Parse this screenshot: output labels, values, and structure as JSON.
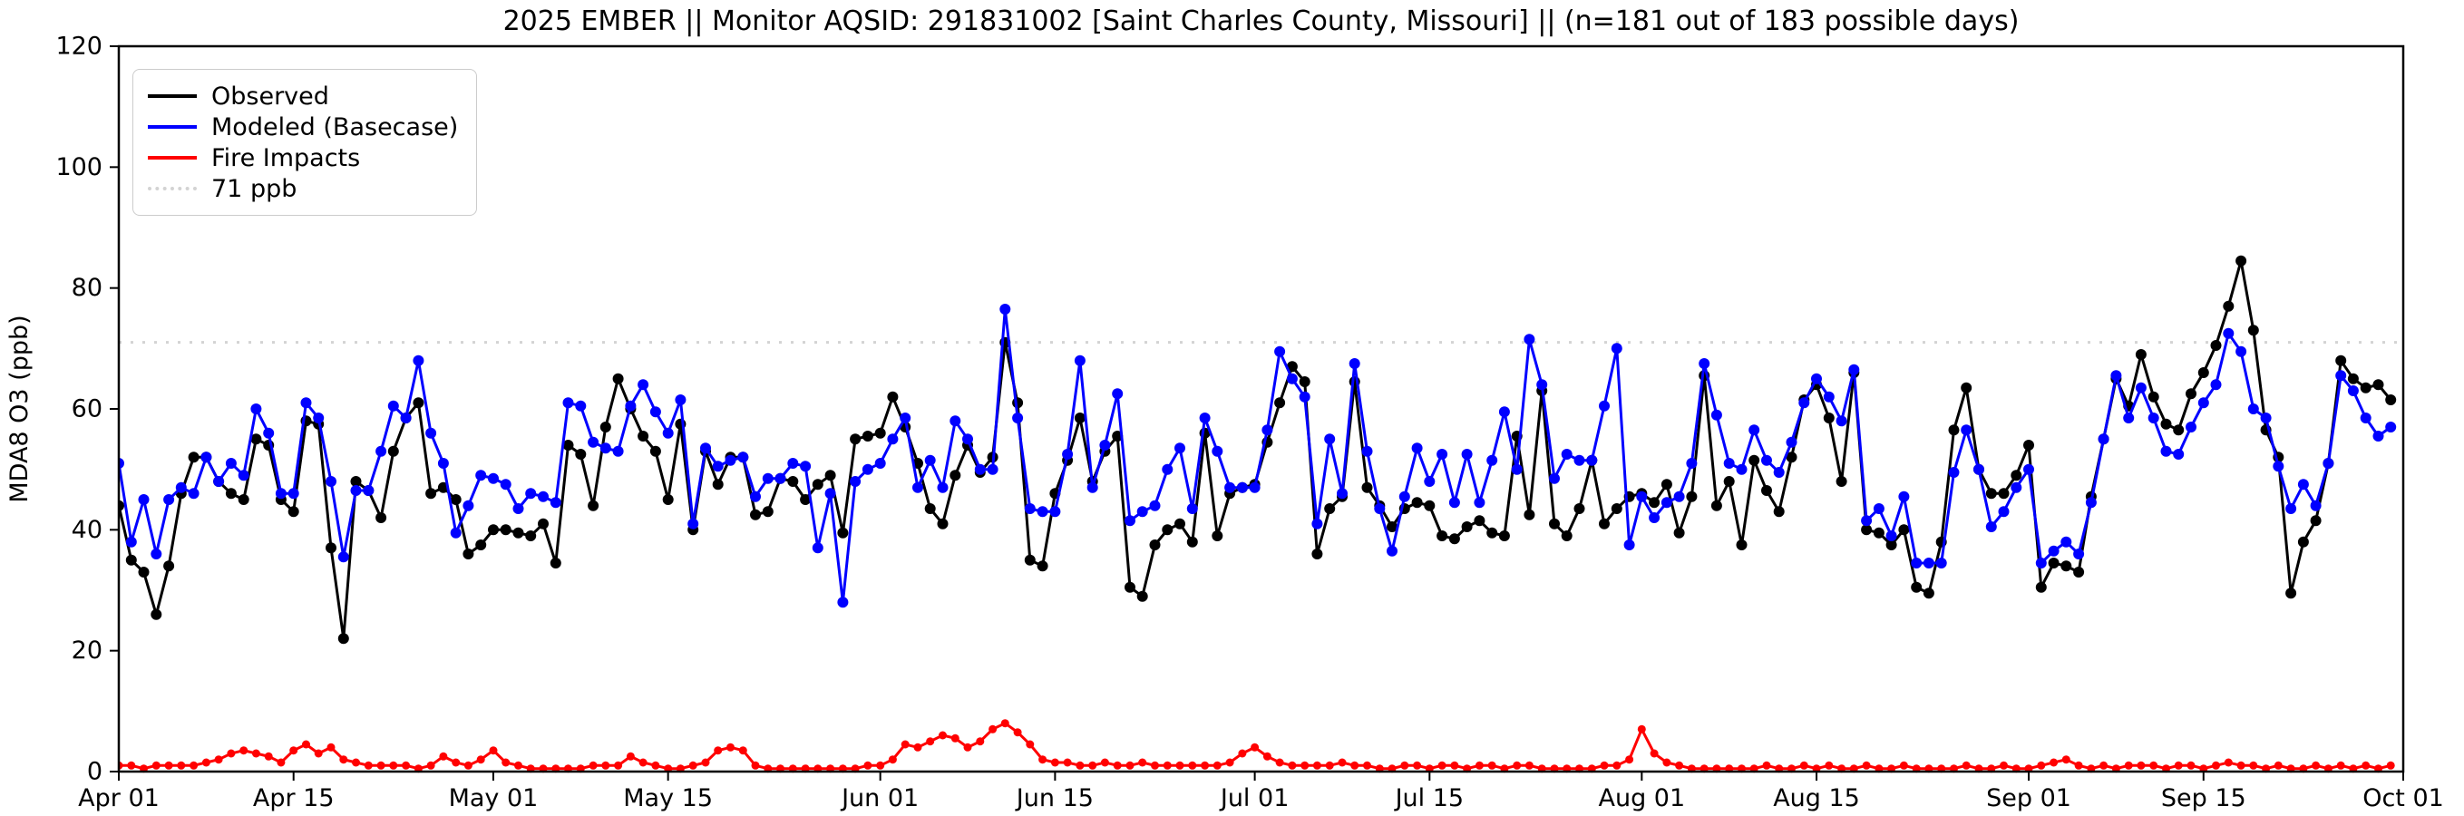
{
  "figure": {
    "title": "2025 EMBER || Monitor AQSID: 291831002 [Saint Charles County, Missouri] || (n=181 out of 183 possible days)"
  },
  "legend": {
    "position": "upper left",
    "items": [
      {
        "label": "Observed",
        "color": "#000000",
        "style": "solid"
      },
      {
        "label": "Modeled (Basecase)",
        "color": "#0000ff",
        "style": "solid"
      },
      {
        "label": "Fire Impacts",
        "color": "#ff0000",
        "style": "solid"
      },
      {
        "label": "71 ppb",
        "color": "#d3d3d3",
        "style": "dotted"
      }
    ]
  },
  "chart_data": {
    "type": "line",
    "title": "2025 EMBER || Monitor AQSID: 291831002 [Saint Charles County, Missouri] || (n=181 out of 183 possible days)",
    "xlabel": "",
    "ylabel": "MDA8 O3 (ppb)",
    "ylim": [
      0,
      120
    ],
    "yticks": [
      0,
      20,
      40,
      60,
      80,
      100,
      120
    ],
    "x_days": 183,
    "x_start": "Apr 01",
    "x_end": "Oct 01",
    "xtick_labels": [
      "Apr 01",
      "Apr 15",
      "May 01",
      "May 15",
      "Jun 01",
      "Jun 15",
      "Jul 01",
      "Jul 15",
      "Aug 01",
      "Aug 15",
      "Sep 01",
      "Sep 15",
      "Oct 01"
    ],
    "xtick_day_index": [
      0,
      14,
      30,
      44,
      61,
      75,
      91,
      105,
      122,
      136,
      153,
      167,
      183
    ],
    "grid": false,
    "legend_position": "upper left",
    "reference_line": {
      "value": 71,
      "label": "71 ppb",
      "color": "#d3d3d3",
      "style": "dotted"
    },
    "values_note": "daily MDA8 ozone (ppb), Apr 01 - Sep 30, values estimated from plot",
    "series": [
      {
        "name": "Observed",
        "color": "#000000",
        "values": [
          44,
          35,
          33,
          26,
          34,
          46,
          52,
          52,
          48,
          46,
          45,
          55,
          54,
          45,
          43,
          58,
          57.5,
          37,
          22,
          48,
          46.5,
          42,
          53,
          58.5,
          61,
          46,
          47,
          45,
          36,
          37.5,
          40,
          40,
          39.5,
          39,
          41,
          34.5,
          54,
          52.5,
          44,
          57,
          65,
          60,
          55.5,
          53,
          45,
          57.5,
          40,
          53,
          47.5,
          52,
          52,
          42.5,
          43,
          48.5,
          48,
          45,
          47.5,
          49,
          39.5,
          55,
          55.5,
          56,
          62,
          57,
          51,
          43.5,
          41,
          49,
          54,
          49.5,
          52,
          71,
          61,
          35,
          34,
          46,
          51.5,
          58.5,
          48,
          53,
          55.5,
          30.5,
          29,
          37.5,
          40,
          41,
          38,
          56,
          39,
          46,
          47,
          47.5,
          54.5,
          61,
          67,
          64.5,
          36,
          43.5,
          45.5,
          64.5,
          47,
          44,
          40.5,
          43.5,
          44.5,
          44,
          39,
          38.5,
          40.5,
          41.5,
          39.5,
          39,
          55.5,
          42.5,
          63,
          41,
          39,
          43.5,
          51.5,
          41,
          43.5,
          45.5,
          46,
          44.5,
          47.5,
          39.5,
          45.5,
          65.5,
          44,
          48,
          37.5,
          51.5,
          46.5,
          43,
          52,
          61.5,
          64,
          58.5,
          48,
          66,
          40,
          39.5,
          37.5,
          40,
          30.5,
          29.5,
          38,
          56.5,
          63.5,
          50,
          46,
          46,
          49,
          54,
          30.5,
          34.5,
          34,
          33,
          45.5,
          55,
          65,
          60.5,
          69,
          62,
          57.5,
          56.5,
          62.5,
          66,
          70.5,
          77,
          84.5,
          73,
          56.5,
          52,
          29.5,
          38,
          41.5,
          51,
          68,
          65,
          63.5,
          64,
          61.5
        ]
      },
      {
        "name": "Modeled (Basecase)",
        "color": "#0000ff",
        "values": [
          51,
          38,
          45,
          36,
          45,
          47,
          46,
          52,
          48,
          51,
          49,
          60,
          56,
          46,
          46,
          61,
          58.5,
          48,
          35.5,
          46.5,
          46.5,
          53,
          60.5,
          58.5,
          68,
          56,
          51,
          39.5,
          44,
          49,
          48.5,
          47.5,
          43.5,
          46,
          45.5,
          44.5,
          61,
          60.5,
          54.5,
          53.5,
          53,
          60.5,
          64,
          59.5,
          56,
          61.5,
          41,
          53.5,
          50.5,
          51.5,
          52,
          45.5,
          48.5,
          48.5,
          51,
          50.5,
          37,
          46,
          28,
          48,
          50,
          51,
          55,
          58.5,
          47,
          51.5,
          47,
          58,
          55,
          50,
          50,
          76.5,
          58.5,
          43.5,
          43,
          43,
          52.5,
          68,
          47,
          54,
          62.5,
          41.5,
          43,
          44,
          50,
          53.5,
          43.5,
          58.5,
          53,
          47,
          47,
          47,
          56.5,
          69.5,
          65,
          62,
          41,
          55,
          46,
          67.5,
          53,
          43.5,
          36.5,
          45.5,
          53.5,
          48,
          52.5,
          44.5,
          52.5,
          44.5,
          51.5,
          59.5,
          50,
          71.5,
          64,
          48.5,
          52.5,
          51.5,
          51.5,
          60.5,
          70,
          37.5,
          45.5,
          42,
          44.5,
          45.5,
          51,
          67.5,
          59,
          51,
          50,
          56.5,
          51.5,
          49.5,
          54.5,
          61,
          65,
          62,
          58,
          66.5,
          41.5,
          43.5,
          39,
          45.5,
          34.5,
          34.5,
          34.5,
          49.5,
          56.5,
          50,
          40.5,
          43,
          47,
          50,
          34.5,
          36.5,
          38,
          36,
          44.5,
          55,
          65.5,
          58.5,
          63.5,
          58.5,
          53,
          52.5,
          57,
          61,
          64,
          72.5,
          69.5,
          60,
          58.5,
          50.5,
          43.5,
          47.5,
          44,
          51,
          65.5,
          63,
          58.5,
          55.5,
          57
        ]
      },
      {
        "name": "Fire Impacts",
        "color": "#ff0000",
        "values": [
          1,
          1,
          0.5,
          1,
          1,
          1,
          1,
          1.5,
          2,
          3,
          3.5,
          3,
          2.5,
          1.5,
          3.5,
          4.5,
          3,
          4,
          2,
          1.5,
          1,
          1,
          1,
          1,
          0.5,
          1,
          2.5,
          1.5,
          1,
          2,
          3.5,
          1.5,
          1,
          0.5,
          0.5,
          0.5,
          0.5,
          0.5,
          1,
          1,
          1,
          2.5,
          1.5,
          1,
          0.5,
          0.5,
          1,
          1.5,
          3.5,
          4,
          3.5,
          1,
          0.5,
          0.5,
          0.5,
          0.5,
          0.5,
          0.5,
          0.5,
          0.5,
          1,
          1,
          2,
          4.5,
          4,
          5,
          6,
          5.5,
          4,
          5,
          7,
          8,
          6.5,
          4.5,
          2,
          1.5,
          1.5,
          1,
          1,
          1.5,
          1,
          1,
          1.5,
          1,
          1,
          1,
          1,
          1,
          1,
          1.5,
          3,
          4,
          2.5,
          1.5,
          1,
          1,
          1,
          1,
          1.5,
          1,
          1,
          0.5,
          0.5,
          1,
          1,
          0.5,
          1,
          1,
          0.5,
          1,
          1,
          0.5,
          1,
          1,
          0.5,
          0.5,
          0.5,
          0.5,
          0.5,
          1,
          1,
          2,
          7,
          3,
          1.5,
          1,
          0.5,
          0.5,
          0.5,
          0.5,
          0.5,
          0.5,
          1,
          0.5,
          0.5,
          1,
          0.5,
          1,
          0.5,
          0.5,
          1,
          0.5,
          0.5,
          1,
          0.5,
          0.5,
          0.5,
          0.5,
          1,
          0.5,
          0.5,
          1,
          0.5,
          0.5,
          1,
          1.5,
          2,
          1,
          0.5,
          1,
          0.5,
          1,
          1,
          1,
          0.5,
          1,
          1,
          0.5,
          1,
          1.5,
          1,
          1,
          0.5,
          1,
          0.5,
          0.5,
          1,
          0.5,
          1,
          0.5,
          1,
          0.5,
          1
        ]
      }
    ]
  }
}
